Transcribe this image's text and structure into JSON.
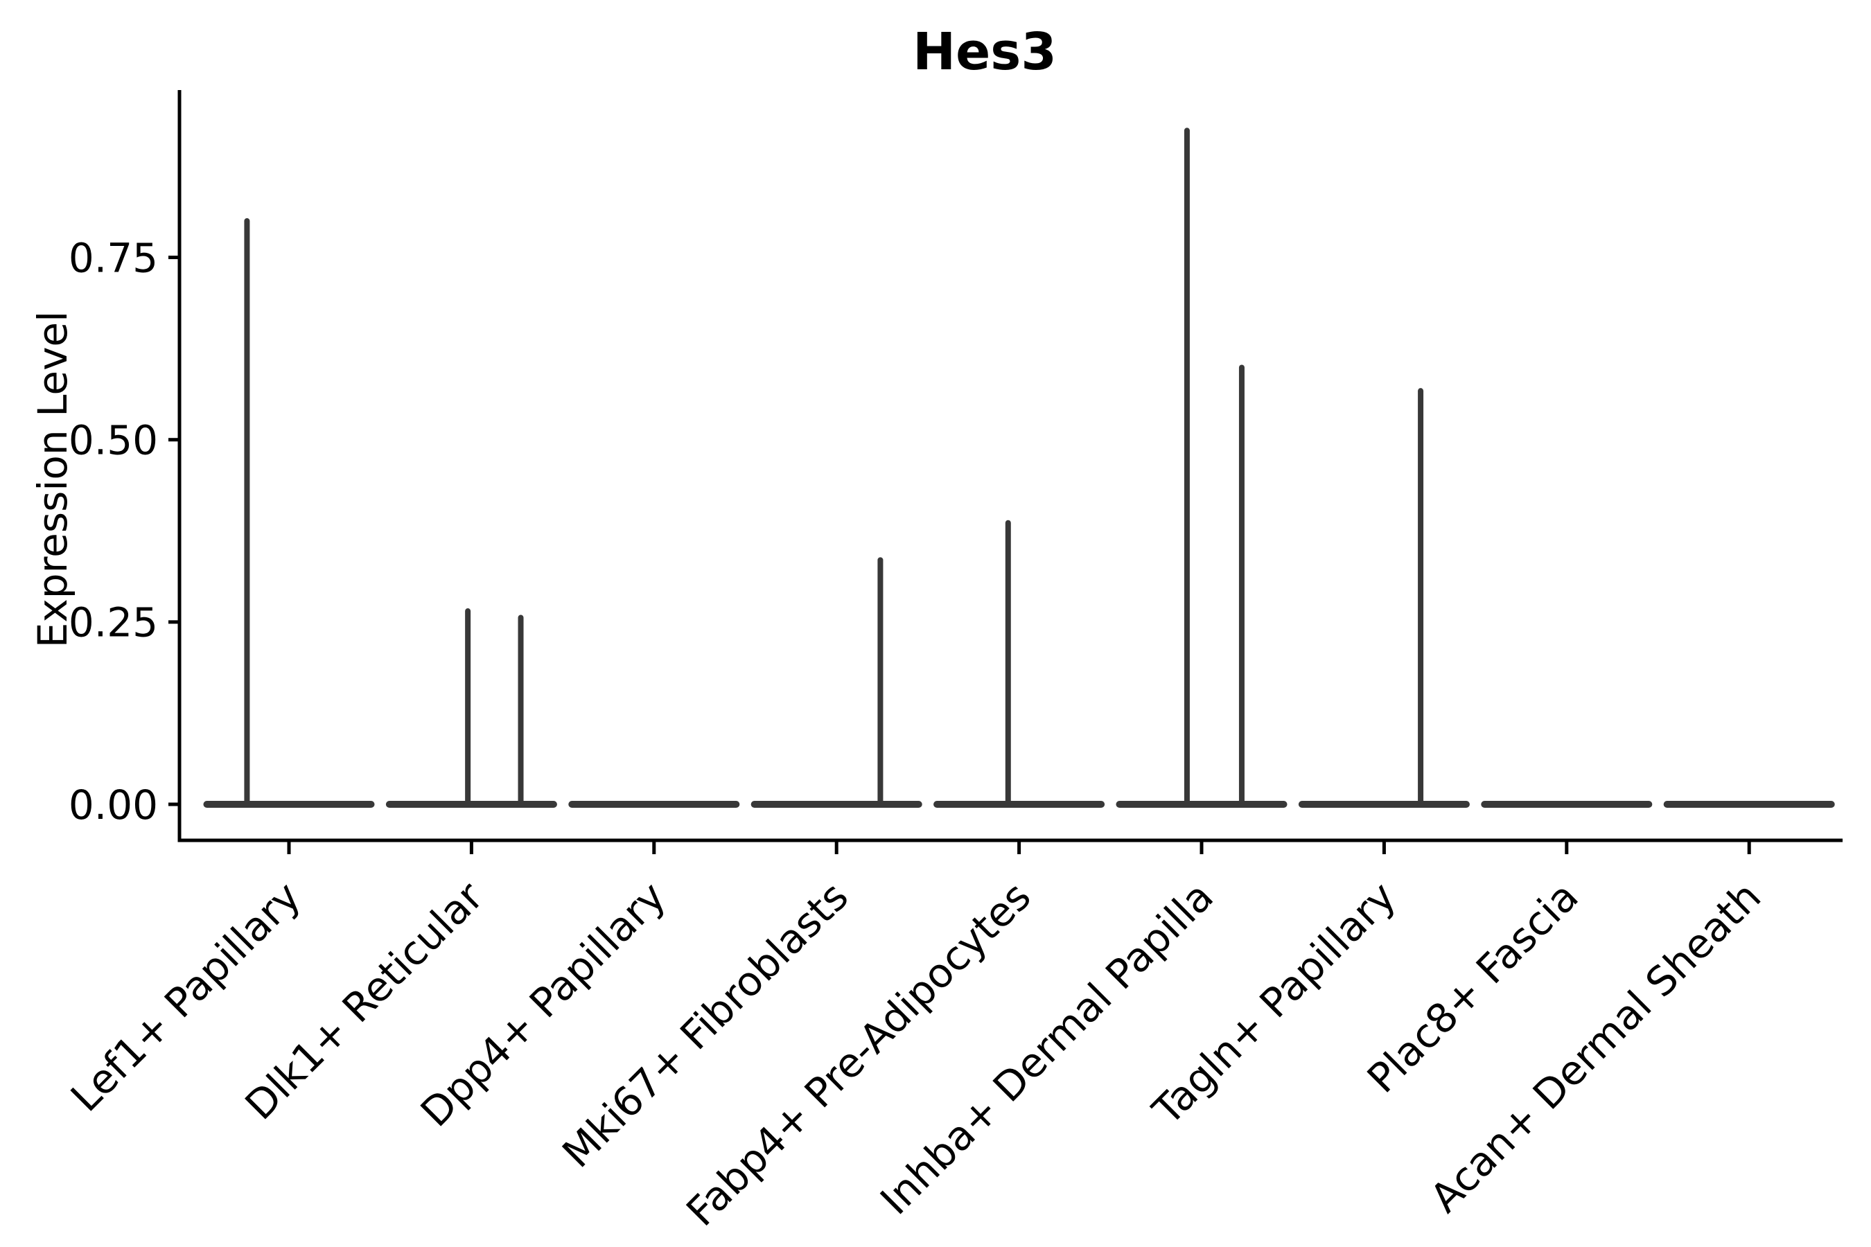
{
  "figure": {
    "title": "Hes3"
  },
  "chart_data": {
    "type": "violin",
    "title": "Hes3",
    "xlabel": "",
    "ylabel": "Expression Level",
    "ylim": [
      -0.05,
      0.98
    ],
    "grid": false,
    "legend": "none",
    "background": "#ffffff",
    "ytick_values": [
      0.0,
      0.25,
      0.5,
      0.75
    ],
    "ytick_labels": [
      "0.00",
      "0.25",
      "0.50",
      "0.75"
    ],
    "categories": [
      "Lef1+ Papillary",
      "Dlk1+ Reticular",
      "Dpp4+ Papillary",
      "Mki67+ Fibroblasts",
      "Fabp4+ Pre-Adipocytes",
      "Inhba+ Dermal Papilla",
      "Tagln+ Papillary",
      "Plac8+ Fascia",
      "Acan+ Dermal Sheath"
    ],
    "violins": [
      {
        "category": "Lef1+ Papillary",
        "baseline_value": 0,
        "width_frac": 0.9,
        "spikes": [
          {
            "offset_frac": -0.23,
            "value": 0.8
          }
        ]
      },
      {
        "category": "Dlk1+ Reticular",
        "baseline_value": 0,
        "width_frac": 0.9,
        "spikes": [
          {
            "offset_frac": -0.02,
            "value": 0.265
          },
          {
            "offset_frac": 0.27,
            "value": 0.256
          }
        ]
      },
      {
        "category": "Dpp4+ Papillary",
        "baseline_value": 0,
        "width_frac": 0.9,
        "spikes": []
      },
      {
        "category": "Mki67+ Fibroblasts",
        "baseline_value": 0,
        "width_frac": 0.9,
        "spikes": [
          {
            "offset_frac": 0.24,
            "value": 0.335
          }
        ]
      },
      {
        "category": "Fabp4+ Pre-Adipocytes",
        "baseline_value": 0,
        "width_frac": 0.9,
        "spikes": [
          {
            "offset_frac": -0.06,
            "value": 0.386
          }
        ]
      },
      {
        "category": "Inhba+ Dermal Papilla",
        "baseline_value": 0,
        "width_frac": 0.9,
        "spikes": [
          {
            "offset_frac": -0.08,
            "value": 0.924
          },
          {
            "offset_frac": 0.22,
            "value": 0.599
          }
        ]
      },
      {
        "category": "Tagln+ Papillary",
        "baseline_value": 0,
        "width_frac": 0.9,
        "spikes": [
          {
            "offset_frac": 0.2,
            "value": 0.567
          }
        ]
      },
      {
        "category": "Plac8+ Fascia",
        "baseline_value": 0,
        "width_frac": 0.9,
        "spikes": []
      },
      {
        "category": "Acan+ Dermal Sheath",
        "baseline_value": 0,
        "width_frac": 0.9,
        "spikes": []
      }
    ]
  },
  "colors": {
    "violin_line": "#383838",
    "axis": "#000000",
    "text": "#000000",
    "background": "#ffffff"
  }
}
